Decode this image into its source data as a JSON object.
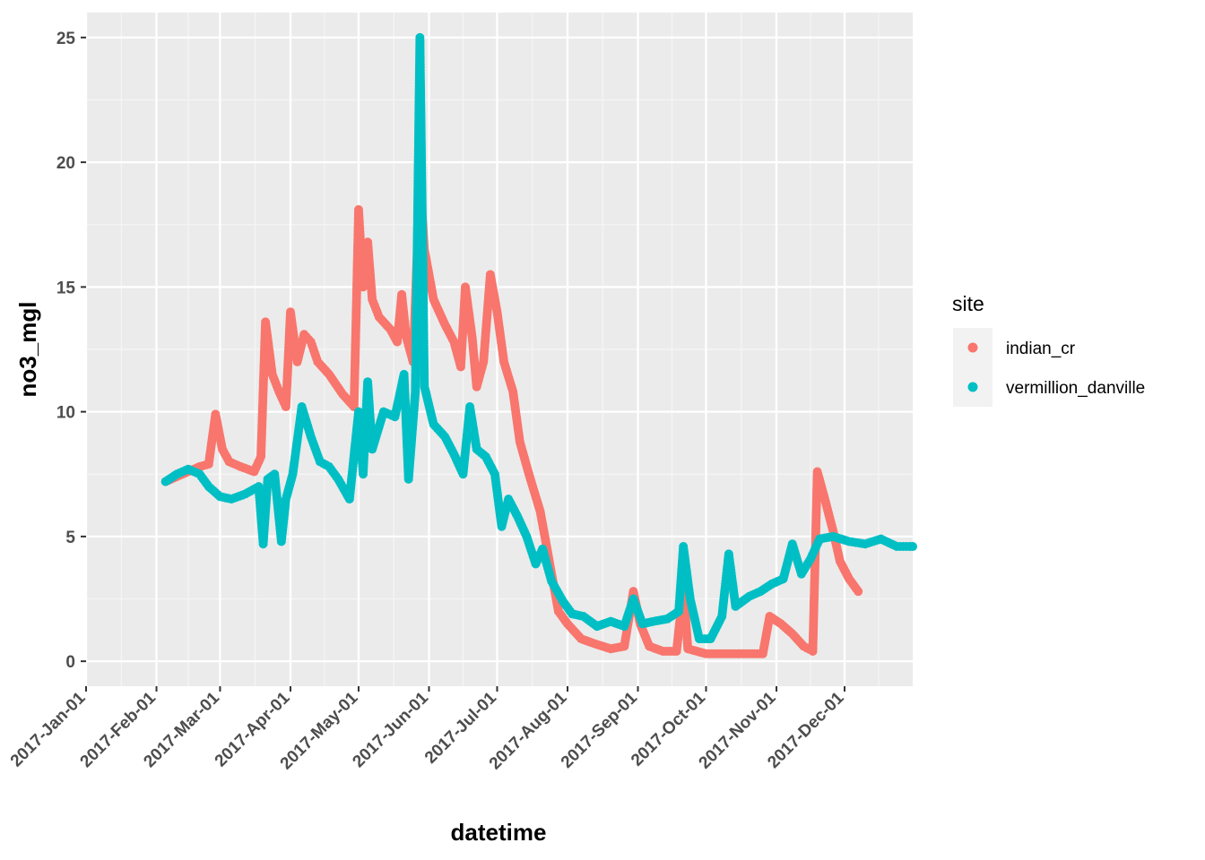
{
  "chart_data": {
    "type": "scatter",
    "xlabel": "datetime",
    "ylabel": "no3_mgl",
    "xlim": [
      "2017-01-01",
      "2017-12-31"
    ],
    "ylim": [
      -1,
      26
    ],
    "x_ticks": [
      "2017-01-01",
      "2017-02-01",
      "2017-03-01",
      "2017-04-01",
      "2017-05-01",
      "2017-06-01",
      "2017-07-01",
      "2017-08-01",
      "2017-09-01",
      "2017-10-01",
      "2017-11-01",
      "2017-12-01"
    ],
    "x_tick_labels": [
      "2017-Jan-01",
      "2017-Feb-01",
      "2017-Mar-01",
      "2017-Apr-01",
      "2017-May-01",
      "2017-Jun-01",
      "2017-Jul-01",
      "2017-Aug-01",
      "2017-Sep-01",
      "2017-Oct-01",
      "2017-Nov-01",
      "2017-Dec-01"
    ],
    "y_ticks": [
      0,
      5,
      10,
      15,
      20,
      25
    ],
    "y_tick_labels": [
      "0",
      "5",
      "10",
      "15",
      "20",
      "25"
    ],
    "grid": true,
    "legend": {
      "title": "site",
      "position": "right"
    },
    "series": [
      {
        "name": "indian_cr",
        "color": "#F8766D",
        "points": [
          [
            "2017-02-05",
            7.2
          ],
          [
            "2017-02-10",
            7.4
          ],
          [
            "2017-02-15",
            7.6
          ],
          [
            "2017-02-20",
            7.8
          ],
          [
            "2017-02-24",
            7.9
          ],
          [
            "2017-02-27",
            9.9
          ],
          [
            "2017-03-02",
            8.5
          ],
          [
            "2017-03-05",
            8.0
          ],
          [
            "2017-03-10",
            7.8
          ],
          [
            "2017-03-16",
            7.6
          ],
          [
            "2017-03-19",
            8.2
          ],
          [
            "2017-03-21",
            13.6
          ],
          [
            "2017-03-24",
            11.5
          ],
          [
            "2017-03-27",
            10.8
          ],
          [
            "2017-03-30",
            10.2
          ],
          [
            "2017-04-01",
            14.0
          ],
          [
            "2017-04-04",
            12.0
          ],
          [
            "2017-04-07",
            13.1
          ],
          [
            "2017-04-10",
            12.8
          ],
          [
            "2017-04-13",
            12.0
          ],
          [
            "2017-04-18",
            11.5
          ],
          [
            "2017-04-24",
            10.7
          ],
          [
            "2017-04-29",
            10.2
          ],
          [
            "2017-05-01",
            18.1
          ],
          [
            "2017-05-03",
            15.0
          ],
          [
            "2017-05-05",
            16.8
          ],
          [
            "2017-05-07",
            14.5
          ],
          [
            "2017-05-10",
            13.8
          ],
          [
            "2017-05-15",
            13.3
          ],
          [
            "2017-05-18",
            12.8
          ],
          [
            "2017-05-20",
            14.7
          ],
          [
            "2017-05-22",
            13.0
          ],
          [
            "2017-05-25",
            12.0
          ],
          [
            "2017-05-28",
            19.3
          ],
          [
            "2017-05-30",
            16.5
          ],
          [
            "2017-06-03",
            14.5
          ],
          [
            "2017-06-08",
            13.5
          ],
          [
            "2017-06-12",
            12.8
          ],
          [
            "2017-06-15",
            11.8
          ],
          [
            "2017-06-17",
            15.0
          ],
          [
            "2017-06-20",
            13.0
          ],
          [
            "2017-06-22",
            11.0
          ],
          [
            "2017-06-25",
            12.0
          ],
          [
            "2017-06-28",
            15.5
          ],
          [
            "2017-07-01",
            14.0
          ],
          [
            "2017-07-04",
            12.0
          ],
          [
            "2017-07-08",
            10.8
          ],
          [
            "2017-07-11",
            8.8
          ],
          [
            "2017-07-15",
            7.5
          ],
          [
            "2017-07-20",
            6.0
          ],
          [
            "2017-07-25",
            3.5
          ],
          [
            "2017-07-28",
            2.0
          ],
          [
            "2017-08-01",
            1.5
          ],
          [
            "2017-08-07",
            0.9
          ],
          [
            "2017-08-13",
            0.7
          ],
          [
            "2017-08-20",
            0.5
          ],
          [
            "2017-08-26",
            0.6
          ],
          [
            "2017-08-30",
            2.8
          ],
          [
            "2017-09-02",
            1.5
          ],
          [
            "2017-09-06",
            0.6
          ],
          [
            "2017-09-12",
            0.4
          ],
          [
            "2017-09-18",
            0.4
          ],
          [
            "2017-09-21",
            2.9
          ],
          [
            "2017-09-23",
            0.5
          ],
          [
            "2017-10-01",
            0.3
          ],
          [
            "2017-10-10",
            0.3
          ],
          [
            "2017-10-20",
            0.3
          ],
          [
            "2017-10-26",
            0.3
          ],
          [
            "2017-10-29",
            1.8
          ],
          [
            "2017-11-03",
            1.5
          ],
          [
            "2017-11-08",
            1.1
          ],
          [
            "2017-11-13",
            0.6
          ],
          [
            "2017-11-17",
            0.4
          ],
          [
            "2017-11-19",
            7.6
          ],
          [
            "2017-11-22",
            6.6
          ],
          [
            "2017-11-26",
            5.2
          ],
          [
            "2017-11-29",
            4.0
          ],
          [
            "2017-12-03",
            3.3
          ],
          [
            "2017-12-07",
            2.8
          ]
        ]
      },
      {
        "name": "vermillion_danville",
        "color": "#00BFC4",
        "points": [
          [
            "2017-02-05",
            7.2
          ],
          [
            "2017-02-10",
            7.5
          ],
          [
            "2017-02-15",
            7.7
          ],
          [
            "2017-02-20",
            7.5
          ],
          [
            "2017-02-24",
            7.0
          ],
          [
            "2017-03-01",
            6.6
          ],
          [
            "2017-03-06",
            6.5
          ],
          [
            "2017-03-12",
            6.7
          ],
          [
            "2017-03-18",
            7.0
          ],
          [
            "2017-03-20",
            4.7
          ],
          [
            "2017-03-22",
            7.3
          ],
          [
            "2017-03-25",
            7.5
          ],
          [
            "2017-03-28",
            4.8
          ],
          [
            "2017-03-30",
            6.5
          ],
          [
            "2017-04-02",
            7.5
          ],
          [
            "2017-04-06",
            10.2
          ],
          [
            "2017-04-10",
            9.0
          ],
          [
            "2017-04-14",
            8.0
          ],
          [
            "2017-04-18",
            7.8
          ],
          [
            "2017-04-22",
            7.3
          ],
          [
            "2017-04-27",
            6.5
          ],
          [
            "2017-05-01",
            10.0
          ],
          [
            "2017-05-03",
            7.5
          ],
          [
            "2017-05-05",
            11.2
          ],
          [
            "2017-05-07",
            8.5
          ],
          [
            "2017-05-12",
            10.0
          ],
          [
            "2017-05-17",
            9.8
          ],
          [
            "2017-05-21",
            11.5
          ],
          [
            "2017-05-23",
            7.3
          ],
          [
            "2017-05-26",
            10.8
          ],
          [
            "2017-05-28",
            25.0
          ],
          [
            "2017-05-30",
            11.0
          ],
          [
            "2017-06-03",
            9.5
          ],
          [
            "2017-06-08",
            9.0
          ],
          [
            "2017-06-12",
            8.3
          ],
          [
            "2017-06-16",
            7.5
          ],
          [
            "2017-06-19",
            10.2
          ],
          [
            "2017-06-22",
            8.5
          ],
          [
            "2017-06-26",
            8.2
          ],
          [
            "2017-06-30",
            7.5
          ],
          [
            "2017-07-03",
            5.4
          ],
          [
            "2017-07-06",
            6.5
          ],
          [
            "2017-07-10",
            5.8
          ],
          [
            "2017-07-14",
            5.0
          ],
          [
            "2017-07-18",
            3.9
          ],
          [
            "2017-07-21",
            4.5
          ],
          [
            "2017-07-25",
            3.2
          ],
          [
            "2017-07-30",
            2.4
          ],
          [
            "2017-08-03",
            1.9
          ],
          [
            "2017-08-08",
            1.8
          ],
          [
            "2017-08-14",
            1.4
          ],
          [
            "2017-08-20",
            1.6
          ],
          [
            "2017-08-26",
            1.4
          ],
          [
            "2017-08-30",
            2.5
          ],
          [
            "2017-09-03",
            1.5
          ],
          [
            "2017-09-08",
            1.6
          ],
          [
            "2017-09-14",
            1.7
          ],
          [
            "2017-09-19",
            2.0
          ],
          [
            "2017-09-21",
            4.6
          ],
          [
            "2017-09-24",
            2.5
          ],
          [
            "2017-09-28",
            0.9
          ],
          [
            "2017-10-03",
            0.9
          ],
          [
            "2017-10-08",
            1.8
          ],
          [
            "2017-10-11",
            4.3
          ],
          [
            "2017-10-14",
            2.2
          ],
          [
            "2017-10-20",
            2.6
          ],
          [
            "2017-10-25",
            2.8
          ],
          [
            "2017-10-30",
            3.1
          ],
          [
            "2017-11-04",
            3.3
          ],
          [
            "2017-11-08",
            4.7
          ],
          [
            "2017-11-12",
            3.5
          ],
          [
            "2017-11-16",
            4.1
          ],
          [
            "2017-11-20",
            4.9
          ],
          [
            "2017-11-26",
            5.0
          ],
          [
            "2017-12-03",
            4.8
          ],
          [
            "2017-12-10",
            4.7
          ],
          [
            "2017-12-17",
            4.9
          ],
          [
            "2017-12-24",
            4.6
          ],
          [
            "2017-12-31",
            4.6
          ]
        ]
      }
    ]
  }
}
